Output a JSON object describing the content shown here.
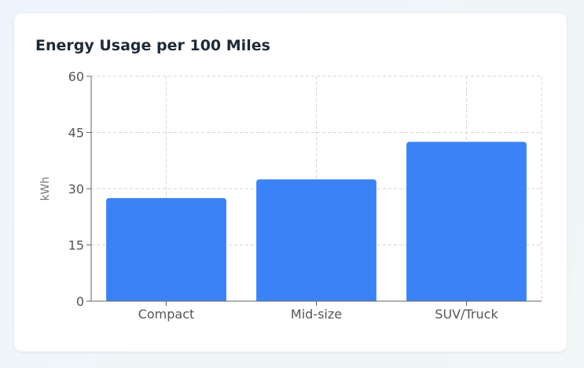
{
  "chart_data": {
    "type": "bar",
    "title": "Energy Usage per 100 Miles",
    "xlabel": "",
    "ylabel": "kWh",
    "categories": [
      "Compact",
      "Mid-size",
      "SUV/Truck"
    ],
    "values": [
      27.5,
      32.5,
      42.5
    ],
    "ylim": [
      0,
      60
    ],
    "yticks": [
      0,
      15,
      30,
      45,
      60
    ],
    "grid": true,
    "legend": "none",
    "colors": {
      "bar": "#3b82f6",
      "grid": "#d4d4d4",
      "axis": "#666666"
    }
  }
}
